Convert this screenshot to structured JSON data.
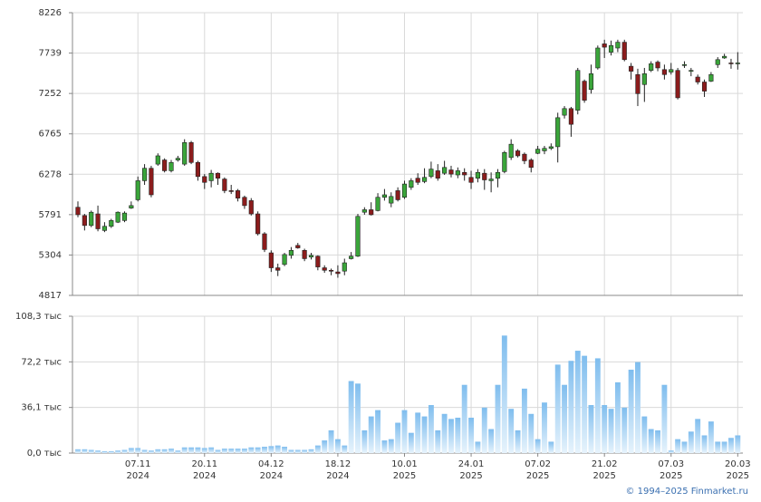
{
  "chart_data": [
    {
      "type": "candlestick",
      "up_color": "#3aa53a",
      "down_color": "#8b1c1c",
      "grid": true,
      "ylim": [
        4817,
        8226
      ],
      "yticks": [
        4817,
        5304,
        5791,
        6278,
        6765,
        7252,
        7739,
        8226
      ],
      "open": [
        5880,
        5780,
        5660,
        5800,
        5600,
        5650,
        5700,
        5720,
        5870,
        5970,
        6200,
        6350,
        6400,
        6450,
        6320,
        6450,
        6400,
        6660,
        6420,
        6250,
        6200,
        6290,
        6220,
        6080,
        6080,
        6000,
        5960,
        5800,
        5560,
        5330,
        5150,
        5190,
        5300,
        5420,
        5360,
        5280,
        5290,
        5150,
        5120,
        5100,
        5110,
        5260,
        5290,
        5820,
        5850,
        5840,
        6000,
        5930,
        6080,
        6000,
        6120,
        6230,
        6190,
        6250,
        6320,
        6290,
        6330,
        6270,
        6300,
        6240,
        6230,
        6290,
        6200,
        6230,
        6310,
        6480,
        6560,
        6520,
        6450,
        6530,
        6560,
        6590,
        6610,
        6990,
        7070,
        7050,
        7400,
        7300,
        7560,
        7850,
        7750,
        7800,
        7870,
        7580,
        7480,
        7360,
        7530,
        7630,
        7540,
        7510,
        7530,
        7590,
        7520,
        7450,
        7390,
        7400,
        7600,
        7680,
        7620,
        7610
      ],
      "high": [
        5950,
        5800,
        5840,
        5900,
        5700,
        5740,
        5830,
        5830,
        5950,
        6250,
        6400,
        6380,
        6530,
        6470,
        6450,
        6500,
        6700,
        6680,
        6440,
        6280,
        6330,
        6300,
        6240,
        6150,
        6100,
        6020,
        5990,
        5830,
        5580,
        5360,
        5200,
        5330,
        5400,
        5450,
        5380,
        5330,
        5300,
        5180,
        5140,
        5180,
        5260,
        5340,
        5800,
        5880,
        5940,
        6050,
        6100,
        6060,
        6120,
        6200,
        6230,
        6290,
        6350,
        6430,
        6400,
        6440,
        6380,
        6360,
        6350,
        6320,
        6340,
        6340,
        6300,
        6340,
        6560,
        6700,
        6580,
        6540,
        6470,
        6620,
        6620,
        6650,
        7020,
        7100,
        7090,
        7560,
        7420,
        7600,
        7830,
        7900,
        7890,
        7900,
        7900,
        7620,
        7550,
        7560,
        7640,
        7650,
        7600,
        7620,
        7560,
        7640,
        7560,
        7480,
        7420,
        7510,
        7690,
        7730,
        7670,
        7750
      ],
      "low": [
        5760,
        5600,
        5640,
        5590,
        5580,
        5630,
        5690,
        5700,
        5860,
        5950,
        6150,
        6000,
        6380,
        6300,
        6300,
        6430,
        6380,
        6400,
        6200,
        6100,
        6120,
        6150,
        6050,
        6040,
        5950,
        5860,
        5780,
        5540,
        5340,
        5100,
        5050,
        5170,
        5260,
        5380,
        5230,
        5250,
        5120,
        5090,
        5060,
        5030,
        5060,
        5250,
        5280,
        5790,
        5780,
        5830,
        5960,
        5880,
        5950,
        5980,
        6090,
        6150,
        6170,
        6230,
        6200,
        6270,
        6240,
        6230,
        6200,
        6100,
        6180,
        6090,
        6060,
        6120,
        6290,
        6450,
        6480,
        6400,
        6300,
        6520,
        6520,
        6570,
        6420,
        6950,
        6730,
        7000,
        7140,
        7250,
        7540,
        7680,
        7710,
        7750,
        7640,
        7420,
        7100,
        7150,
        7510,
        7520,
        7420,
        7480,
        7180,
        7560,
        7460,
        7360,
        7210,
        7390,
        7560,
        7670,
        7550,
        7540
      ],
      "close": [
        5790,
        5660,
        5820,
        5620,
        5650,
        5720,
        5820,
        5810,
        5900,
        6200,
        6350,
        6030,
        6500,
        6320,
        6420,
        6470,
        6660,
        6420,
        6250,
        6180,
        6290,
        6230,
        6080,
        6070,
        5990,
        5900,
        5800,
        5560,
        5370,
        5150,
        5120,
        5310,
        5360,
        5390,
        5260,
        5300,
        5160,
        5120,
        5110,
        5080,
        5210,
        5290,
        5770,
        5850,
        5790,
        6000,
        6030,
        6010,
        5970,
        6160,
        6200,
        6180,
        6240,
        6340,
        6230,
        6360,
        6280,
        6320,
        6270,
        6180,
        6300,
        6210,
        6220,
        6300,
        6540,
        6640,
        6500,
        6440,
        6360,
        6580,
        6590,
        6610,
        6960,
        7070,
        6880,
        7530,
        7170,
        7490,
        7800,
        7810,
        7830,
        7870,
        7660,
        7520,
        7250,
        7490,
        7610,
        7560,
        7480,
        7540,
        7200,
        7600,
        7530,
        7390,
        7280,
        7480,
        7660,
        7700,
        7610,
        7620
      ]
    },
    {
      "type": "bar",
      "color": "#7fbdee",
      "grid": true,
      "ylim": [
        0,
        108.3
      ],
      "yticks": [
        {
          "value": 0,
          "label": "0,0 тыс"
        },
        {
          "value": 36.1,
          "label": "36,1 тыс"
        },
        {
          "value": 72.2,
          "label": "72,2 тыс"
        },
        {
          "value": 108.3,
          "label": "108,3 тыс"
        }
      ],
      "categories": [
        null,
        null,
        null,
        null,
        null,
        null,
        null,
        null,
        null,
        "07.11",
        null,
        null,
        null,
        null,
        null,
        null,
        null,
        null,
        null,
        "20.11",
        null,
        null,
        null,
        null,
        null,
        null,
        null,
        null,
        null,
        "04.12",
        null,
        null,
        null,
        null,
        null,
        null,
        null,
        null,
        null,
        "18.12",
        null,
        null,
        null,
        null,
        null,
        null,
        null,
        null,
        null,
        "10.01",
        null,
        null,
        null,
        null,
        null,
        null,
        null,
        null,
        null,
        "24.01",
        null,
        null,
        null,
        null,
        null,
        null,
        null,
        null,
        null,
        "07.02",
        null,
        null,
        null,
        null,
        null,
        null,
        null,
        null,
        null,
        "21.02",
        null,
        null,
        null,
        null,
        null,
        null,
        null,
        null,
        null,
        "07.03",
        null,
        null,
        null,
        null,
        null,
        null,
        null,
        null,
        null,
        "20.03"
      ],
      "category_years": [
        null,
        null,
        null,
        null,
        null,
        null,
        null,
        null,
        null,
        "2024",
        null,
        null,
        null,
        null,
        null,
        null,
        null,
        null,
        null,
        "2024",
        null,
        null,
        null,
        null,
        null,
        null,
        null,
        null,
        null,
        "2024",
        null,
        null,
        null,
        null,
        null,
        null,
        null,
        null,
        null,
        "2024",
        null,
        null,
        null,
        null,
        null,
        null,
        null,
        null,
        null,
        "2025",
        null,
        null,
        null,
        null,
        null,
        null,
        null,
        null,
        null,
        "2025",
        null,
        null,
        null,
        null,
        null,
        null,
        null,
        null,
        null,
        "2025",
        null,
        null,
        null,
        null,
        null,
        null,
        null,
        null,
        null,
        "2025",
        null,
        null,
        null,
        null,
        null,
        null,
        null,
        null,
        null,
        "2025",
        null,
        null,
        null,
        null,
        null,
        null,
        null,
        null,
        null,
        "2025"
      ],
      "values": [
        3,
        3,
        2.5,
        2,
        1.5,
        1.5,
        2,
        2.5,
        4,
        4,
        2.5,
        2,
        3,
        3,
        3.5,
        2,
        4.5,
        4.5,
        4.5,
        4,
        4.5,
        2.5,
        3.5,
        3.5,
        3.5,
        3.5,
        4.5,
        4.5,
        5,
        5.5,
        6,
        5,
        2.5,
        2.5,
        2.5,
        3,
        6,
        10,
        18,
        11,
        6,
        57,
        55,
        18,
        29,
        34,
        10,
        11,
        24,
        34,
        16,
        32,
        29,
        38,
        18,
        31,
        27,
        28,
        54,
        28,
        9,
        36,
        19,
        54,
        93,
        35,
        18,
        51,
        31,
        11,
        40,
        9,
        70,
        54,
        73,
        81,
        77,
        38,
        75,
        38,
        35,
        56,
        36,
        66,
        72,
        29,
        19,
        18,
        54,
        2,
        11,
        9,
        17,
        27,
        14,
        25,
        9,
        9,
        12,
        14
      ]
    }
  ],
  "source": "© 1994–2025 Finmarket.ru"
}
